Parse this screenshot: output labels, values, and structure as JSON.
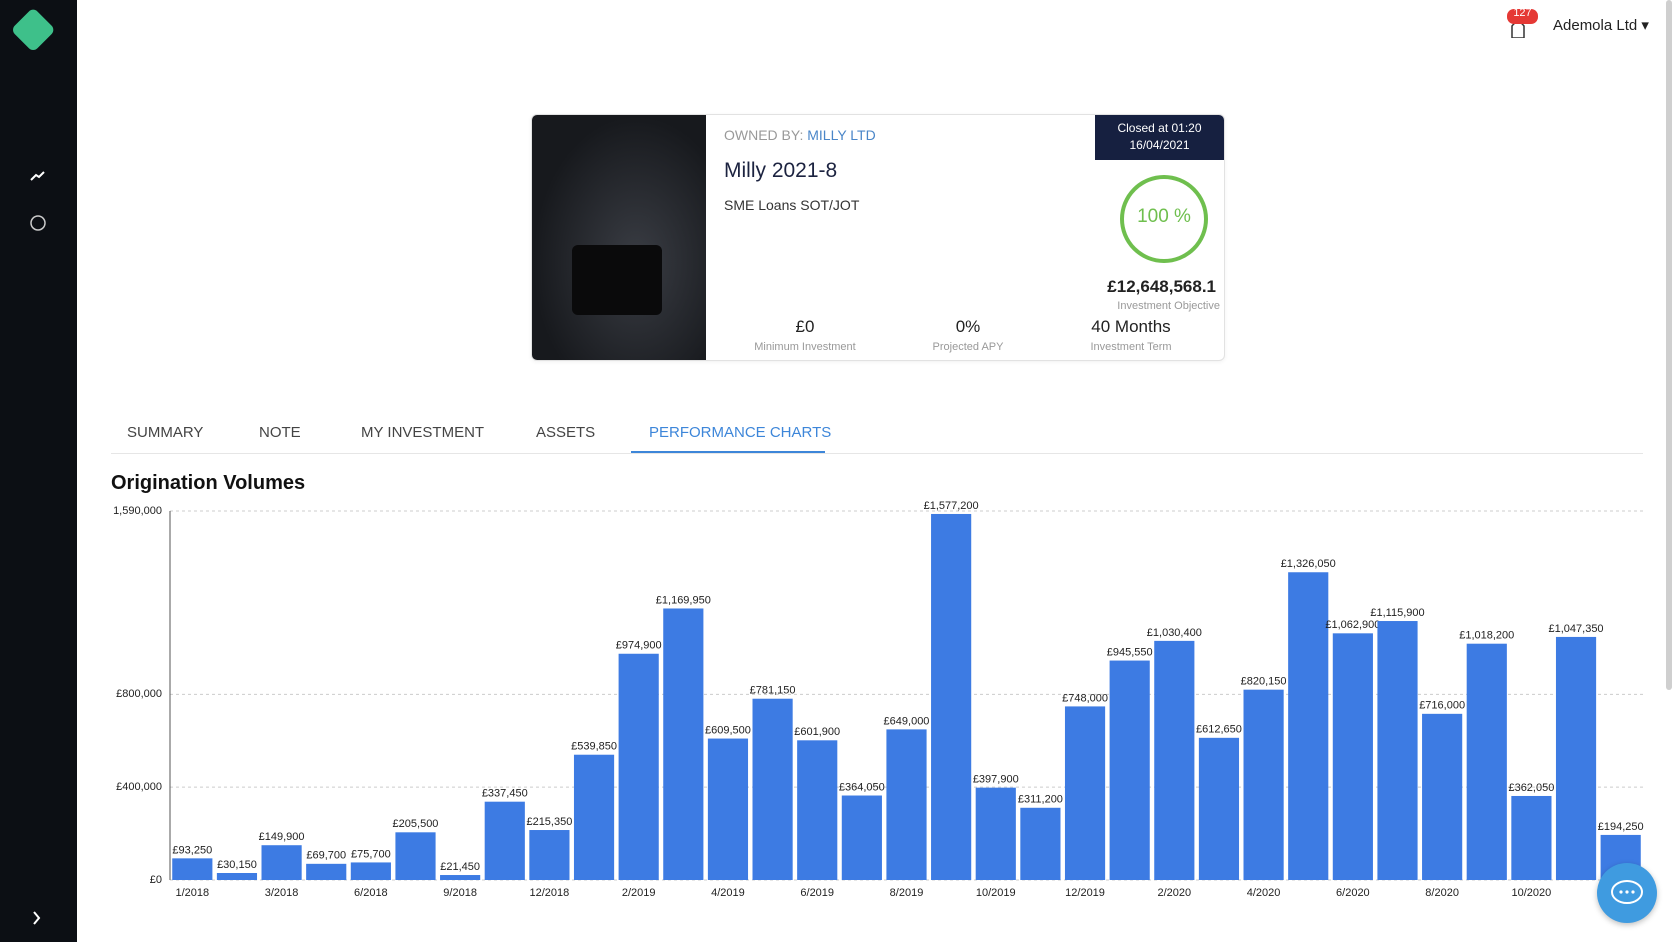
{
  "header": {
    "notifications": "127",
    "account": "Ademola Ltd"
  },
  "card": {
    "owned_by_label": "OWNED BY:",
    "owner": "MILLY LTD",
    "name": "Milly 2021-8",
    "subtitle": "SME Loans SOT/JOT",
    "closed_line1": "Closed at 01:20",
    "closed_line2": "16/04/2021",
    "progress": "100 %",
    "objective_value": "£12,648,568.1",
    "objective_label": "Investment Objective",
    "stats": [
      {
        "value": "£0",
        "label": "Minimum Investment"
      },
      {
        "value": "0%",
        "label": "Projected APY"
      },
      {
        "value": "40 Months",
        "label": "Investment Term"
      }
    ]
  },
  "tabs": [
    "SUMMARY",
    "NOTE",
    "MY INVESTMENT",
    "ASSETS",
    "PERFORMANCE CHARTS"
  ],
  "chart_data": {
    "type": "bar",
    "title": "Origination Volumes",
    "color": "#3d7be3",
    "grid": true,
    "categories": [
      "1/2018",
      null,
      "3/2018",
      null,
      "6/2018",
      null,
      "9/2018",
      null,
      "12/2018",
      null,
      "2/2019",
      null,
      "4/2019",
      null,
      "6/2019",
      null,
      "8/2019",
      null,
      "10/2019",
      null,
      "12/2019",
      null,
      "2/2020",
      null,
      "4/2020",
      null,
      "6/2020",
      null,
      "8/2020",
      null,
      "10/2020",
      null,
      null
    ],
    "values": [
      93250,
      30150,
      149900,
      69700,
      75700,
      205500,
      21450,
      337450,
      215350,
      539850,
      974900,
      1169950,
      609500,
      781150,
      601900,
      364050,
      649000,
      1577200,
      397900,
      311200,
      748000,
      945550,
      1030400,
      612650,
      820150,
      1326050,
      1062900,
      1115900,
      716000,
      1018200,
      362050,
      1047350,
      194250
    ],
    "value_labels": [
      "£93,250",
      "£30,150",
      "£149,900",
      "£69,700",
      "£75,700",
      "£205,500",
      "£21,450",
      "£337,450",
      "£215,350",
      "£539,850",
      "£974,900",
      "£1,169,950",
      "£609,500",
      "£781,150",
      "£601,900",
      "£364,050",
      "£649,000",
      "£1,577,200",
      "£397,900",
      "£311,200",
      "£748,000",
      "£945,550",
      "£1,030,400",
      "£612,650",
      "£820,150",
      "£1,326,050",
      "£1,062,900",
      "£1,115,900",
      "£716,000",
      "£1,018,200",
      "£362,050",
      "£1,047,350",
      "£194,250"
    ],
    "ylim": [
      0,
      1590000
    ],
    "yticks": [
      {
        "value": 0,
        "label": "£0"
      },
      {
        "value": 400000,
        "label": "£400,000"
      },
      {
        "value": 800000,
        "label": "£800,000"
      },
      {
        "value": 1590000,
        "label": "1,590,000"
      }
    ]
  }
}
